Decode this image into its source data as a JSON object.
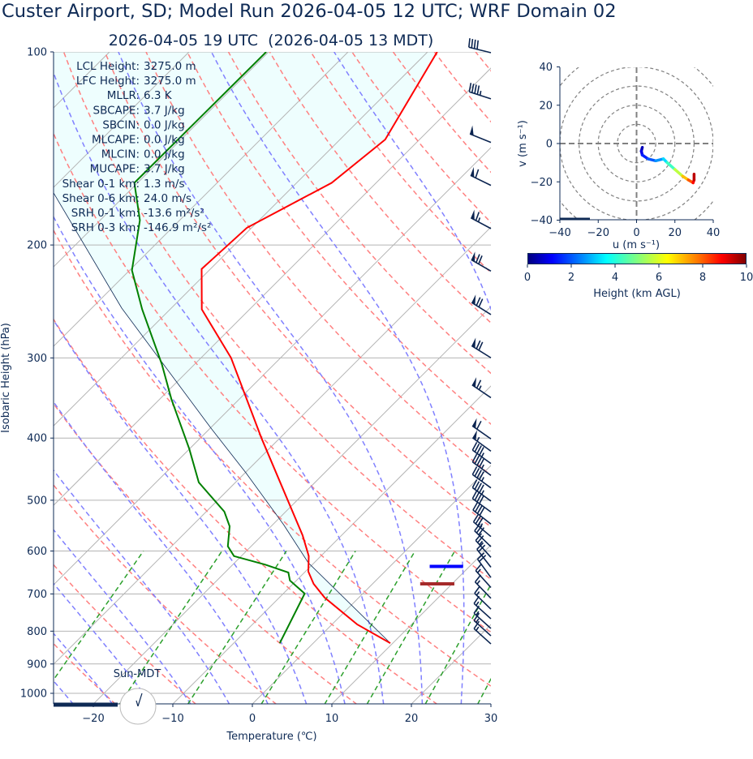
{
  "header": {
    "title": "Custer Airport, SD; Model Run 2026-04-05 12 UTC; WRF Domain 02",
    "subtitle": "2026-04-05 19 UTC  (2026-04-05 13 MDT)"
  },
  "stats": [
    {
      "label": "LCL Height:",
      "value": "3275.0 m"
    },
    {
      "label": "LFC Height:",
      "value": "3275.0 m"
    },
    {
      "label": "MLLR:",
      "value": "6.3 K"
    },
    {
      "label": "SBCAPE:",
      "value": "3.7 J/kg"
    },
    {
      "label": "SBCIN:",
      "value": "0.0 J/kg"
    },
    {
      "label": "MLCAPE:",
      "value": "0.0 J/kg"
    },
    {
      "label": "MLCIN:",
      "value": "0.0 J/kg"
    },
    {
      "label": "MUCAPE:",
      "value": "3.7 J/kg"
    },
    {
      "label": "Shear 0-1 km:",
      "value": "1.3 m/s"
    },
    {
      "label": "Shear 0-6 km:",
      "value": "24.0 m/s"
    },
    {
      "label": "SRH 0-1 km:",
      "value": "-13.6 m²/s²"
    },
    {
      "label": "SRH 0-3 km:",
      "value": "-146.9 m²/s²"
    }
  ],
  "sun_label": "Sun-MDT",
  "chart_data": [
    {
      "type": "line",
      "subtype": "skew-t log-p",
      "xlabel": "Temperature (℃)",
      "ylabel": "Isobaric Height (hPa)",
      "xlim": [
        -25,
        30
      ],
      "ylim": [
        1038,
        100
      ],
      "y_scale": "log",
      "xticks": [
        "−20",
        "−10",
        "0",
        "10",
        "20",
        "30"
      ],
      "xtick_values": [
        -20,
        -10,
        0,
        10,
        20,
        30
      ],
      "yticks": [
        "100",
        "200",
        "300",
        "400",
        "500",
        "600",
        "700",
        "800",
        "900",
        "1000"
      ],
      "ytick_values": [
        100,
        200,
        300,
        400,
        500,
        600,
        700,
        800,
        900,
        1000
      ],
      "grid": true,
      "colors": {
        "temperature": "#ff0000",
        "dewpoint": "#008000",
        "parcel": "#0e2a55",
        "cin_shading": "#eefefe",
        "dry_adiabats": "#ff8080",
        "moist_adiabats": "#8080ff",
        "mixing_ratio": "#2ca02c",
        "isotherms": "#b4b4b4",
        "barbs": "#0b2450"
      },
      "series": [
        {
          "id": "temperature",
          "pressure": [
            835,
            781,
            709,
            675,
            646,
            611,
            603,
            567,
            400,
            300,
            252,
            218,
            188,
            160,
            137,
            100
          ],
          "values": [
            9.7,
            3.2,
            -4.3,
            -7.4,
            -9.6,
            -11.5,
            -12.1,
            -14.9,
            -32.3,
            -46.2,
            -56.0,
            -61.1,
            -60.6,
            -55.6,
            -54.3,
            -58.8
          ]
        },
        {
          "id": "dewpoint",
          "pressure": [
            835,
            699,
            667,
            648,
            630,
            611,
            590,
            549,
            521,
            469,
            416,
            348,
            307,
            252,
            219,
            183,
            160,
            100
          ],
          "values": [
            -4.2,
            -7.3,
            -10.8,
            -12.0,
            -15.9,
            -20.9,
            -22.9,
            -25.2,
            -27.7,
            -34.6,
            -40.0,
            -48.5,
            -54.1,
            -63.5,
            -69.7,
            -75.0,
            -80.4,
            -80.3
          ]
        },
        {
          "id": "parcel",
          "pressure": [
            835,
            626,
            546,
            453,
            386,
            251,
            165,
            100
          ],
          "values": [
            9.7,
            -10.7,
            -18.6,
            -29.9,
            -39.9,
            -66.2,
            -89.6,
            -120
          ]
        }
      ],
      "level_markers": [
        {
          "pressure": 634,
          "t_range": [
            5.0,
            9.2
          ],
          "color": "#0000ff"
        },
        {
          "pressure": 675,
          "t_range": [
            6.0,
            10.3
          ],
          "color": "#a52a2a"
        }
      ],
      "wind_barbs_kt": [
        {
          "p": 100,
          "speed": 40,
          "dir": 284
        },
        {
          "p": 118,
          "speed": 45,
          "dir": 288
        },
        {
          "p": 138,
          "speed": 50,
          "dir": 292
        },
        {
          "p": 161,
          "speed": 60,
          "dir": 296
        },
        {
          "p": 188,
          "speed": 65,
          "dir": 298
        },
        {
          "p": 219,
          "speed": 70,
          "dir": 300
        },
        {
          "p": 256,
          "speed": 70,
          "dir": 302
        },
        {
          "p": 299,
          "speed": 70,
          "dir": 302
        },
        {
          "p": 345,
          "speed": 65,
          "dir": 304
        },
        {
          "p": 400,
          "speed": 60,
          "dir": 305
        },
        {
          "p": 418,
          "speed": 55,
          "dir": 306
        },
        {
          "p": 437,
          "speed": 45,
          "dir": 306
        },
        {
          "p": 456,
          "speed": 45,
          "dir": 306
        },
        {
          "p": 477,
          "speed": 45,
          "dir": 306
        },
        {
          "p": 500,
          "speed": 45,
          "dir": 306
        },
        {
          "p": 520,
          "speed": 40,
          "dir": 306
        },
        {
          "p": 543,
          "speed": 40,
          "dir": 308
        },
        {
          "p": 568,
          "speed": 35,
          "dir": 310
        },
        {
          "p": 589,
          "speed": 30,
          "dir": 314
        },
        {
          "p": 612,
          "speed": 25,
          "dir": 318
        },
        {
          "p": 634,
          "speed": 20,
          "dir": 322
        },
        {
          "p": 658,
          "speed": 20,
          "dir": 324
        },
        {
          "p": 682,
          "speed": 15,
          "dir": 318
        },
        {
          "p": 709,
          "speed": 15,
          "dir": 316
        },
        {
          "p": 737,
          "speed": 15,
          "dir": 314
        },
        {
          "p": 763,
          "speed": 15,
          "dir": 312
        },
        {
          "p": 790,
          "speed": 15,
          "dir": 312
        },
        {
          "p": 811,
          "speed": 15,
          "dir": 312
        },
        {
          "p": 835,
          "speed": 15,
          "dir": 312
        }
      ]
    },
    {
      "type": "line",
      "subtype": "hodograph",
      "xlabel": "u (m s⁻¹)",
      "ylabel": "v (m s⁻¹)",
      "xlim": [
        -40,
        40
      ],
      "ylim": [
        -40,
        40
      ],
      "xticks": [
        "−40",
        "−20",
        "0",
        "20",
        "40"
      ],
      "yticks": [
        "40",
        "20",
        "0",
        "−20",
        "−40"
      ],
      "tick_values": [
        -40,
        -20,
        0,
        20,
        40
      ],
      "ring_spacing": 10,
      "points": [
        {
          "u": 3,
          "v": -2,
          "h": 0.3
        },
        {
          "u": 2.5,
          "v": -4,
          "h": 0.8
        },
        {
          "u": 3,
          "v": -6,
          "h": 1.3
        },
        {
          "u": 6,
          "v": -8,
          "h": 1.8
        },
        {
          "u": 10,
          "v": -9,
          "h": 2.4
        },
        {
          "u": 14,
          "v": -8,
          "h": 3.0
        },
        {
          "u": 16,
          "v": -10,
          "h": 3.8
        },
        {
          "u": 20,
          "v": -13.5,
          "h": 4.9
        },
        {
          "u": 24,
          "v": -17,
          "h": 6.3
        },
        {
          "u": 27,
          "v": -19,
          "h": 7.4
        },
        {
          "u": 29.5,
          "v": -20.5,
          "h": 8.4
        },
        {
          "u": 30,
          "v": -19,
          "h": 9.0
        },
        {
          "u": 30,
          "v": -16,
          "h": 9.8
        }
      ],
      "colorbar": {
        "label": "Height (km AGL)",
        "ticks": [
          "0",
          "2",
          "4",
          "6",
          "8",
          "10"
        ],
        "range": [
          0,
          10
        ],
        "colormap": "jet"
      }
    }
  ]
}
